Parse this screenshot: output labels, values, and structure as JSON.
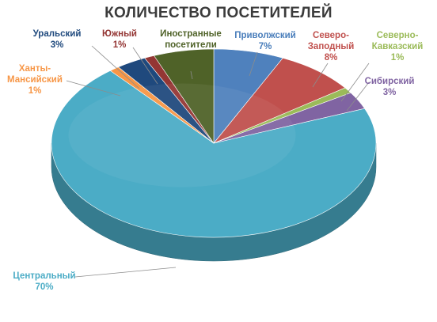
{
  "chart_data": {
    "type": "pie",
    "title": "КОЛИЧЕСТВО  ПОСЕТИТЕЛЕЙ",
    "slices": [
      {
        "label": [
          "Приволжский"
        ],
        "value_label": "7%",
        "value": 7,
        "color": "#4f81bd",
        "label_color": "#4a7ebb"
      },
      {
        "label": [
          "Северо-",
          "Заподный"
        ],
        "value_label": "8%",
        "value": 8,
        "color": "#c0504d",
        "label_color": "#c0504d"
      },
      {
        "label": [
          "Северно-",
          "Кавказский"
        ],
        "value_label": "1%",
        "value": 1,
        "color": "#9bbb59",
        "label_color": "#9bbb59"
      },
      {
        "label": [
          "Сибирский"
        ],
        "value_label": "3%",
        "value": 3,
        "color": "#8064a2",
        "label_color": "#8064a2"
      },
      {
        "label": [
          "Центральный"
        ],
        "value_label": "70%",
        "value": 70,
        "color": "#4bacc6",
        "label_color": "#4bacc6"
      },
      {
        "label": [
          "Ханты-",
          "Мансийский"
        ],
        "value_label": "1%",
        "value": 1,
        "color": "#f79646",
        "label_color": "#f79646"
      },
      {
        "label": [
          "Уральский"
        ],
        "value_label": "3%",
        "value": 3,
        "color": "#1f497d",
        "label_color": "#1f497d"
      },
      {
        "label": [
          "Южный"
        ],
        "value_label": "1%",
        "value": 1,
        "color": "#943634",
        "label_color": "#943634"
      },
      {
        "label": [
          "Иностранные",
          "посетители"
        ],
        "value_label": "6%",
        "value": 6,
        "color": "#4f6228",
        "label_color": "#4f6228"
      }
    ]
  }
}
